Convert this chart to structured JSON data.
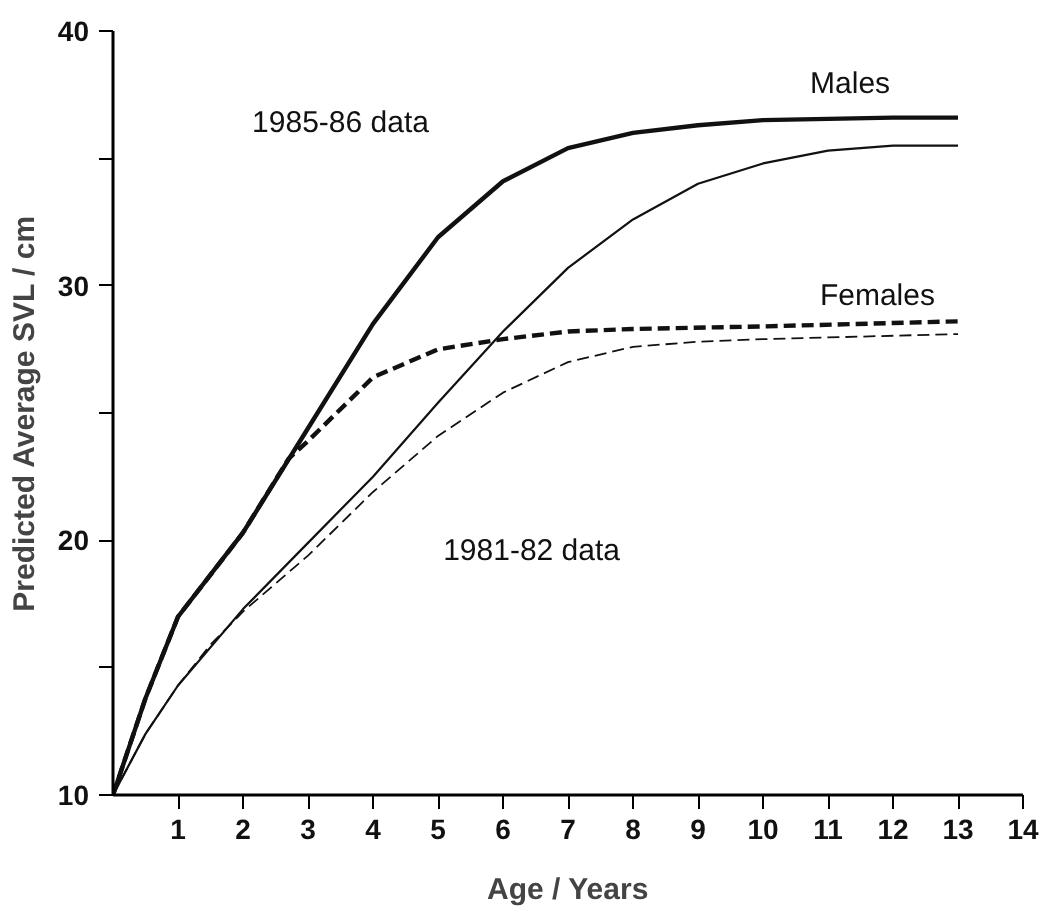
{
  "chart_data": {
    "type": "line",
    "xlabel": "Age / Years",
    "ylabel": "Predicted Average SVL / cm",
    "xlim": [
      0,
      14
    ],
    "ylim": [
      10,
      40
    ],
    "xticks": [
      1,
      2,
      3,
      4,
      5,
      6,
      7,
      8,
      9,
      10,
      11,
      12,
      13,
      14
    ],
    "yticks": [
      10,
      {
        "value": 15,
        "label": null
      },
      20,
      {
        "value": 25,
        "label": null
      },
      30,
      {
        "value": 35,
        "label": null
      },
      40
    ],
    "grid": false,
    "marker": "none",
    "series": [
      {
        "color": "#111111",
        "line_style": "solid",
        "x": [
          0,
          0.25,
          0.5,
          1,
          2,
          3,
          4,
          5,
          6,
          7,
          8,
          9,
          10,
          12,
          13
        ],
        "values": [
          10,
          11.9,
          13.8,
          17.0,
          20.3,
          24.4,
          28.5,
          31.9,
          34.1,
          35.4,
          36.0,
          36.3,
          36.5,
          36.6,
          36.6
        ]
      },
      {
        "color": "#111111",
        "line_style": "dashed",
        "x": [
          0,
          0.25,
          0.5,
          1,
          2,
          2.7,
          3,
          4,
          5,
          6,
          7,
          8,
          10,
          13
        ],
        "values": [
          10,
          11.9,
          13.8,
          17.0,
          20.3,
          23.2,
          23.9,
          26.4,
          27.5,
          27.9,
          28.2,
          28.3,
          28.4,
          28.6
        ]
      },
      {
        "color": "#111111",
        "line_style": "solid",
        "x": [
          0,
          0.5,
          1,
          2,
          3,
          4,
          5,
          6,
          7,
          8,
          9,
          10,
          11,
          12,
          13
        ],
        "values": [
          10,
          12.4,
          14.3,
          17.3,
          19.9,
          22.5,
          25.4,
          28.2,
          30.7,
          32.6,
          34.0,
          34.8,
          35.3,
          35.5,
          35.5
        ]
      },
      {
        "color": "#111111",
        "line_style": "dashed",
        "x": [
          0,
          0.5,
          1,
          1.5,
          2,
          3,
          4,
          5,
          6,
          7,
          8,
          9,
          10,
          13
        ],
        "values": [
          10,
          12.4,
          14.3,
          15.9,
          17.2,
          19.4,
          21.9,
          24.1,
          25.8,
          27.0,
          27.6,
          27.8,
          27.9,
          28.1
        ]
      }
    ],
    "annotations": [
      "Males",
      "Females",
      "1985-86 data",
      "1981-82 data"
    ]
  }
}
